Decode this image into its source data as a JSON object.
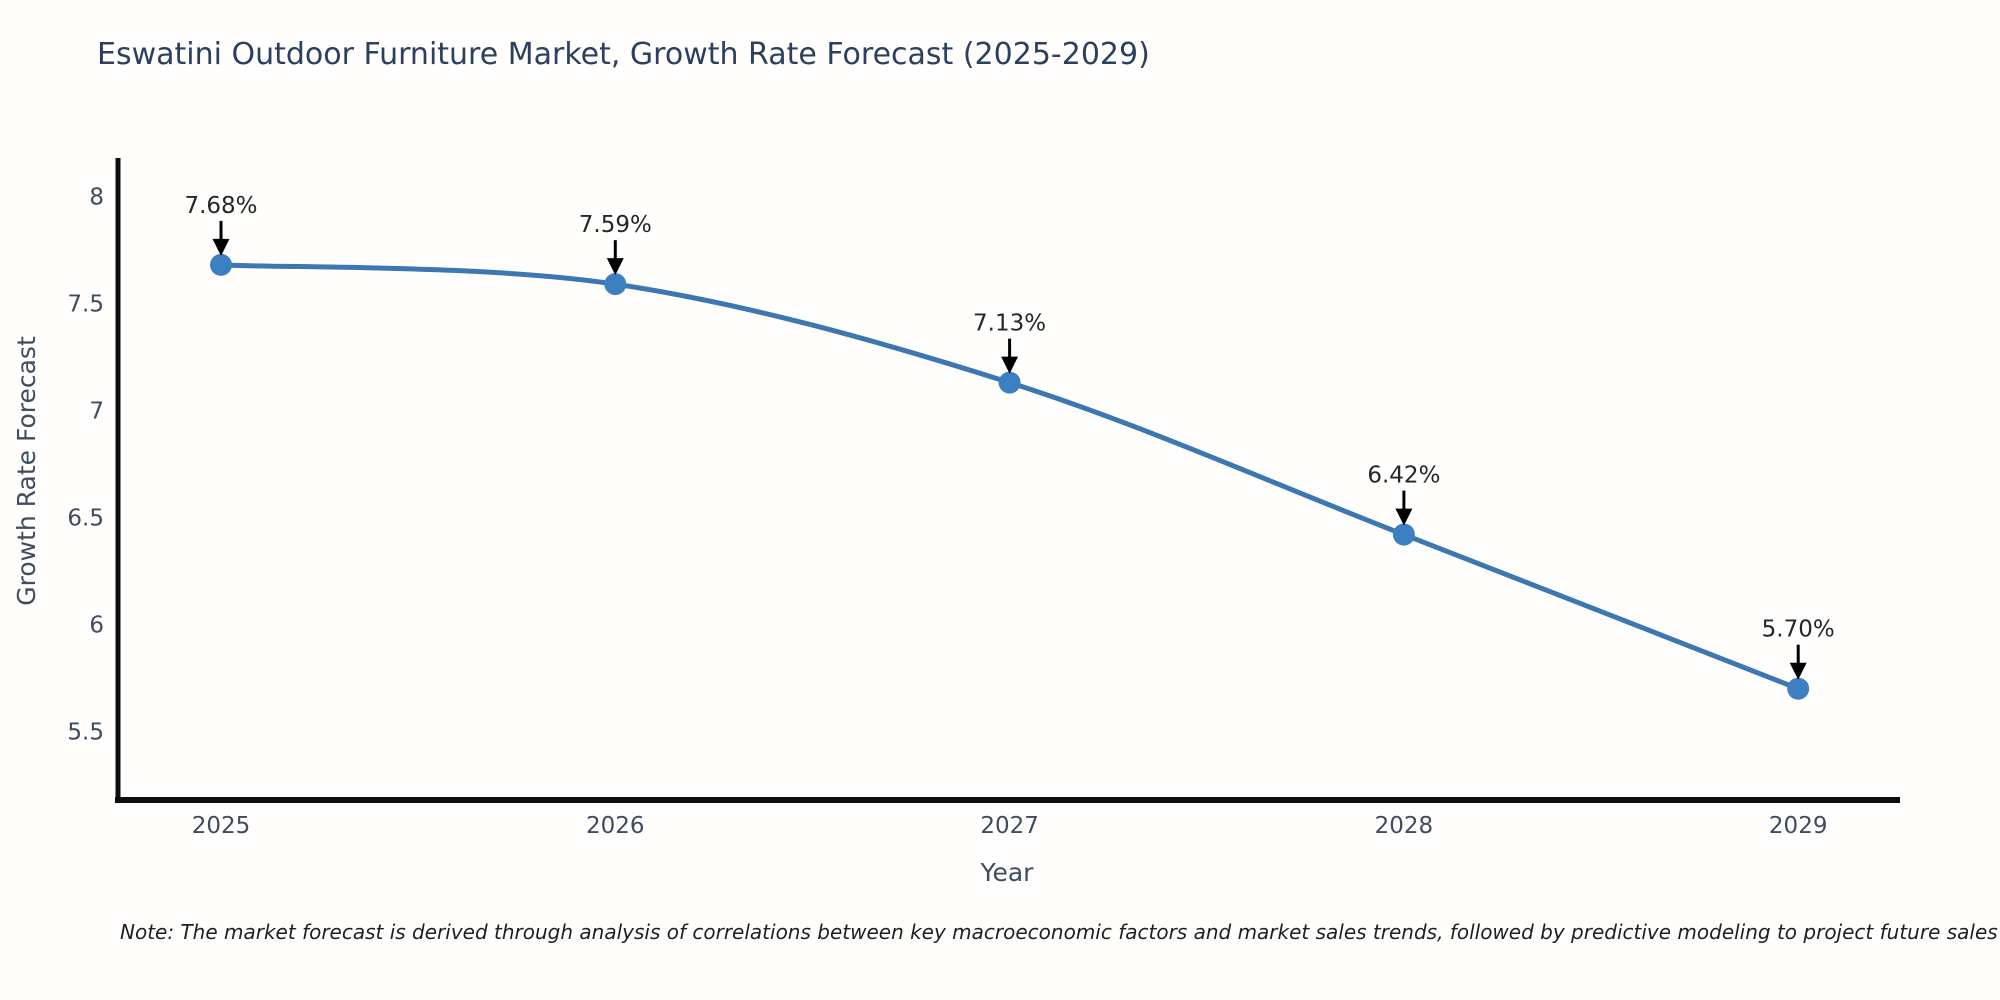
{
  "chart_data": {
    "type": "line",
    "title": "Eswatini Outdoor Furniture Market, Growth Rate Forecast (2025-2029)",
    "xlabel": "Year",
    "ylabel": "Growth Rate Forecast",
    "x": [
      2025,
      2026,
      2027,
      2028,
      2029
    ],
    "values": [
      7.68,
      7.59,
      7.13,
      6.42,
      5.7
    ],
    "point_labels": [
      "7.68%",
      "7.59%",
      "7.13%",
      "6.42%",
      "5.70%"
    ],
    "xtick_labels": [
      "2025",
      "2026",
      "2027",
      "2028",
      "2029"
    ],
    "yticks": [
      8,
      7.5,
      7,
      6.5,
      6,
      5.5
    ],
    "ytick_labels": [
      "8",
      "7.5",
      "7",
      "6.5",
      "6",
      "5.5"
    ],
    "ylim": [
      5.18,
      8.17
    ],
    "grid": false,
    "legend_position": "none",
    "annotation_style": "value label with black down-arrow above each marker",
    "colors": {
      "line": "#3c77b2",
      "marker": "#3d80c2",
      "arrow": "#000000",
      "axis_spine": "#0d0d0d",
      "title_text": "#2b3f5e",
      "tick_text": "#3f4b60",
      "annotation_text": "#262626",
      "background": "#fffefc"
    }
  },
  "note": "Note: The market forecast is derived through analysis of correlations between key macroeconomic factors and market sales trends, followed by predictive modeling to project future sales"
}
